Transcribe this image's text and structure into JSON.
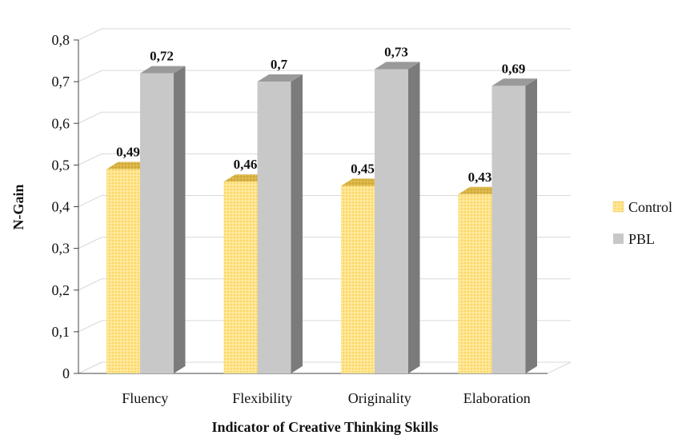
{
  "chart_data": {
    "type": "bar",
    "style": "3d-clustered-column",
    "categories": [
      "Fluency",
      "Flexibility",
      "Originality",
      "Elaboration"
    ],
    "series": [
      {
        "name": "Control",
        "values": [
          0.49,
          0.46,
          0.45,
          0.43
        ],
        "labels": [
          "0,49",
          "0,46",
          "0,45",
          "0,43"
        ],
        "color": "#FFE07A",
        "pattern": "dotted"
      },
      {
        "name": "PBL",
        "values": [
          0.72,
          0.7,
          0.73,
          0.69
        ],
        "labels": [
          "0,72",
          "0,7",
          "0,73",
          "0,69"
        ],
        "color": "#C8C8C8"
      }
    ],
    "yticks": [
      "0",
      "0,1",
      "0,2",
      "0,3",
      "0,4",
      "0,5",
      "0,6",
      "0,7",
      "0,8"
    ],
    "ylim": [
      0,
      0.8
    ],
    "xlabel": "Indicator of Creative Thinking Skills",
    "ylabel": "N-Gain",
    "grid": true,
    "legend": "right"
  }
}
